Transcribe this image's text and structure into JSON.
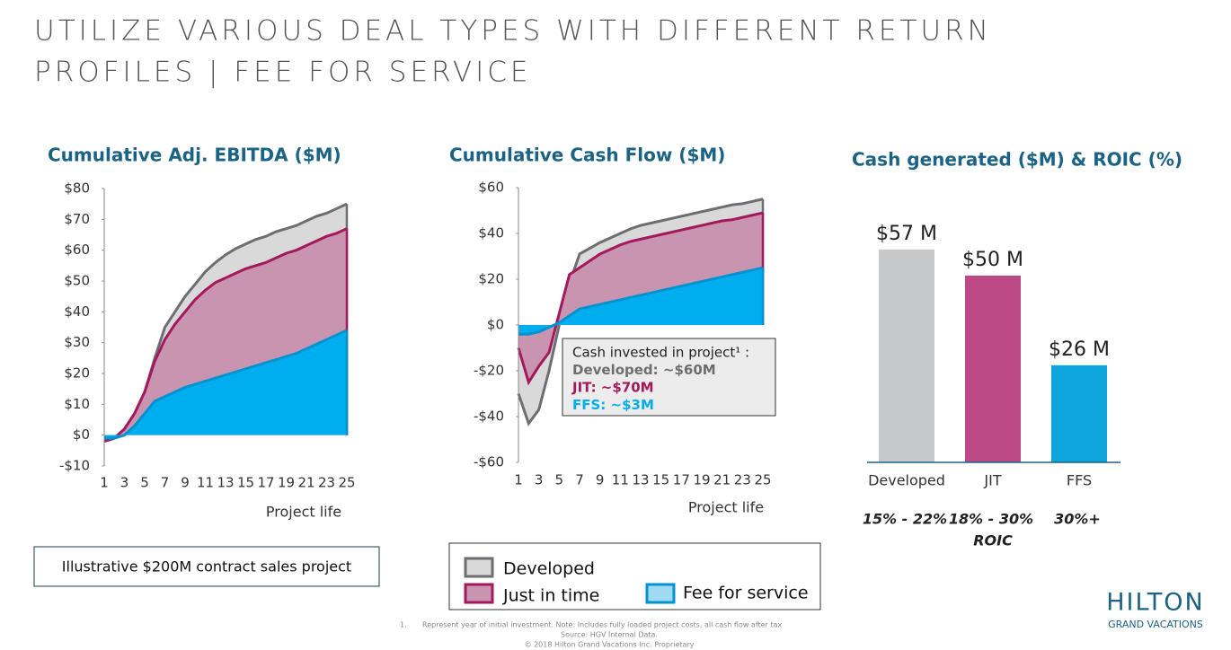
{
  "title_lines": [
    "UTILIZE VARIOUS DEAL TYPES WITH DIFFERENT RETURN",
    "PROFILES | FEE FOR SERVICE"
  ],
  "note_box": "Illustrative $200M contract sales project",
  "footnote": {
    "marker": "1.",
    "text": "Represent year of initial investment.  Note: Includes fully loaded project costs, all cash flow after tax",
    "source": "Source: HGV Internal Data.",
    "copyright": "© 2018 Hilton Grand Vacations Inc. Proprietary"
  },
  "logo": {
    "name": "HILTON",
    "tagline": "GRAND VACATIONS"
  },
  "chart_data": [
    {
      "type": "area",
      "title": "Cumulative Adj. EBITDA ($M)",
      "x_label": "Project life",
      "x": [
        1,
        2,
        3,
        4,
        5,
        6,
        7,
        8,
        9,
        10,
        11,
        12,
        13,
        14,
        15,
        16,
        17,
        18,
        19,
        20,
        21,
        22,
        23,
        24,
        25
      ],
      "xlim": [
        1,
        25
      ],
      "xticks": [
        1,
        3,
        5,
        7,
        9,
        11,
        13,
        15,
        17,
        19,
        21,
        23,
        25
      ],
      "ylim": [
        -10,
        80
      ],
      "yticks": [
        {
          "value": -10,
          "label": "-$10"
        },
        {
          "value": 0,
          "label": "$0"
        },
        {
          "value": 10,
          "label": "$10"
        },
        {
          "value": 20,
          "label": "$20"
        },
        {
          "value": 30,
          "label": "$30"
        },
        {
          "value": 40,
          "label": "$40"
        },
        {
          "value": 50,
          "label": "$50"
        },
        {
          "value": 60,
          "label": "$60"
        },
        {
          "value": 70,
          "label": "$70"
        },
        {
          "value": 80,
          "label": "$80"
        }
      ],
      "series": [
        {
          "name": "Developed",
          "color": "#6d6e71",
          "fill": "#d9d9d9",
          "values": [
            -2,
            -1,
            2,
            7,
            14,
            25,
            35,
            40,
            45,
            49,
            53,
            56,
            58.5,
            60.5,
            62,
            63.5,
            64.5,
            66,
            67,
            68,
            69.5,
            71,
            72,
            73.5,
            75
          ]
        },
        {
          "name": "Just in time",
          "color": "#a3195b",
          "fill": "#c994b0",
          "values": [
            -2,
            -1,
            2,
            7,
            14,
            24,
            31,
            36,
            40,
            44,
            47,
            49.5,
            51,
            52.5,
            54,
            55,
            56,
            57.5,
            59,
            60,
            61.5,
            63,
            64.5,
            65.5,
            67
          ]
        },
        {
          "name": "Fee for service",
          "color": "#0093d0",
          "fill": "#00aeef",
          "values": [
            -1,
            -1,
            0,
            3,
            7,
            11,
            12.5,
            14,
            15.5,
            16.5,
            17.5,
            18.5,
            19.5,
            20.5,
            21.5,
            22.5,
            23.5,
            24.5,
            25.5,
            26.5,
            28,
            29.5,
            31,
            32.5,
            34
          ]
        }
      ]
    },
    {
      "type": "area",
      "title": "Cumulative Cash Flow ($M)",
      "x_label": "Project life",
      "x": [
        1,
        2,
        3,
        4,
        5,
        6,
        7,
        8,
        9,
        10,
        11,
        12,
        13,
        14,
        15,
        16,
        17,
        18,
        19,
        20,
        21,
        22,
        23,
        24,
        25
      ],
      "xlim": [
        1,
        25
      ],
      "xticks": [
        1,
        3,
        5,
        7,
        9,
        11,
        13,
        15,
        17,
        19,
        21,
        23,
        25
      ],
      "ylim": [
        -60,
        60
      ],
      "yticks": [
        {
          "value": -60,
          "label": "-$60"
        },
        {
          "value": -40,
          "label": "-$40"
        },
        {
          "value": -20,
          "label": "-$20"
        },
        {
          "value": 0,
          "label": "$0"
        },
        {
          "value": 20,
          "label": "$20"
        },
        {
          "value": 40,
          "label": "$40"
        },
        {
          "value": 60,
          "label": "$60"
        }
      ],
      "series": [
        {
          "color": "#6d6e71",
          "fill": "#d9d9d9",
          "values": [
            -30,
            -43,
            -37,
            -20,
            0,
            18,
            31,
            33.5,
            36,
            38,
            40,
            42,
            43.5,
            44.5,
            45.5,
            46.5,
            47.5,
            48.5,
            49.5,
            50.5,
            51.5,
            52.5,
            53,
            54,
            55
          ]
        },
        {
          "color": "#a3195b",
          "fill": "#c994b0",
          "values": [
            -10,
            -25,
            -18,
            -12,
            5,
            22,
            25,
            28,
            31,
            33,
            35,
            36.5,
            37.5,
            38.5,
            39.5,
            40.5,
            41.5,
            42.5,
            43.5,
            44.5,
            45.5,
            46,
            47,
            48,
            49
          ]
        },
        {
          "color": "#0093d0",
          "fill": "#00aeef",
          "values": [
            -4,
            -4,
            -3,
            -1,
            1,
            4,
            7,
            8,
            9,
            10,
            11,
            12,
            13,
            14,
            15,
            16,
            17,
            18,
            19,
            20,
            21,
            22,
            23,
            24,
            25
          ]
        }
      ],
      "annotation": [
        {
          "text": "Cash invested in project¹ :",
          "color": "#222"
        },
        {
          "text": "Developed: ~$60M",
          "color": "#6d6e71"
        },
        {
          "text": "JIT: ~$70M",
          "color": "#a3195b"
        },
        {
          "text": "FFS: ~$3M",
          "color": "#00aeef"
        }
      ]
    },
    {
      "type": "bar",
      "title": "Cash generated ($M) & ROIC (%)",
      "categories": [
        "Developed",
        "JIT",
        "FFS"
      ],
      "values": [
        57,
        50,
        26
      ],
      "value_labels": [
        "$57 M",
        "$50 M",
        "$26 M"
      ],
      "colors": [
        "#c7c8ca",
        "#bc4a87",
        "#0ea5dc"
      ],
      "roic": [
        "15% - 22%",
        "18% - 30%",
        "30%+"
      ],
      "roic_label": "ROIC"
    }
  ]
}
